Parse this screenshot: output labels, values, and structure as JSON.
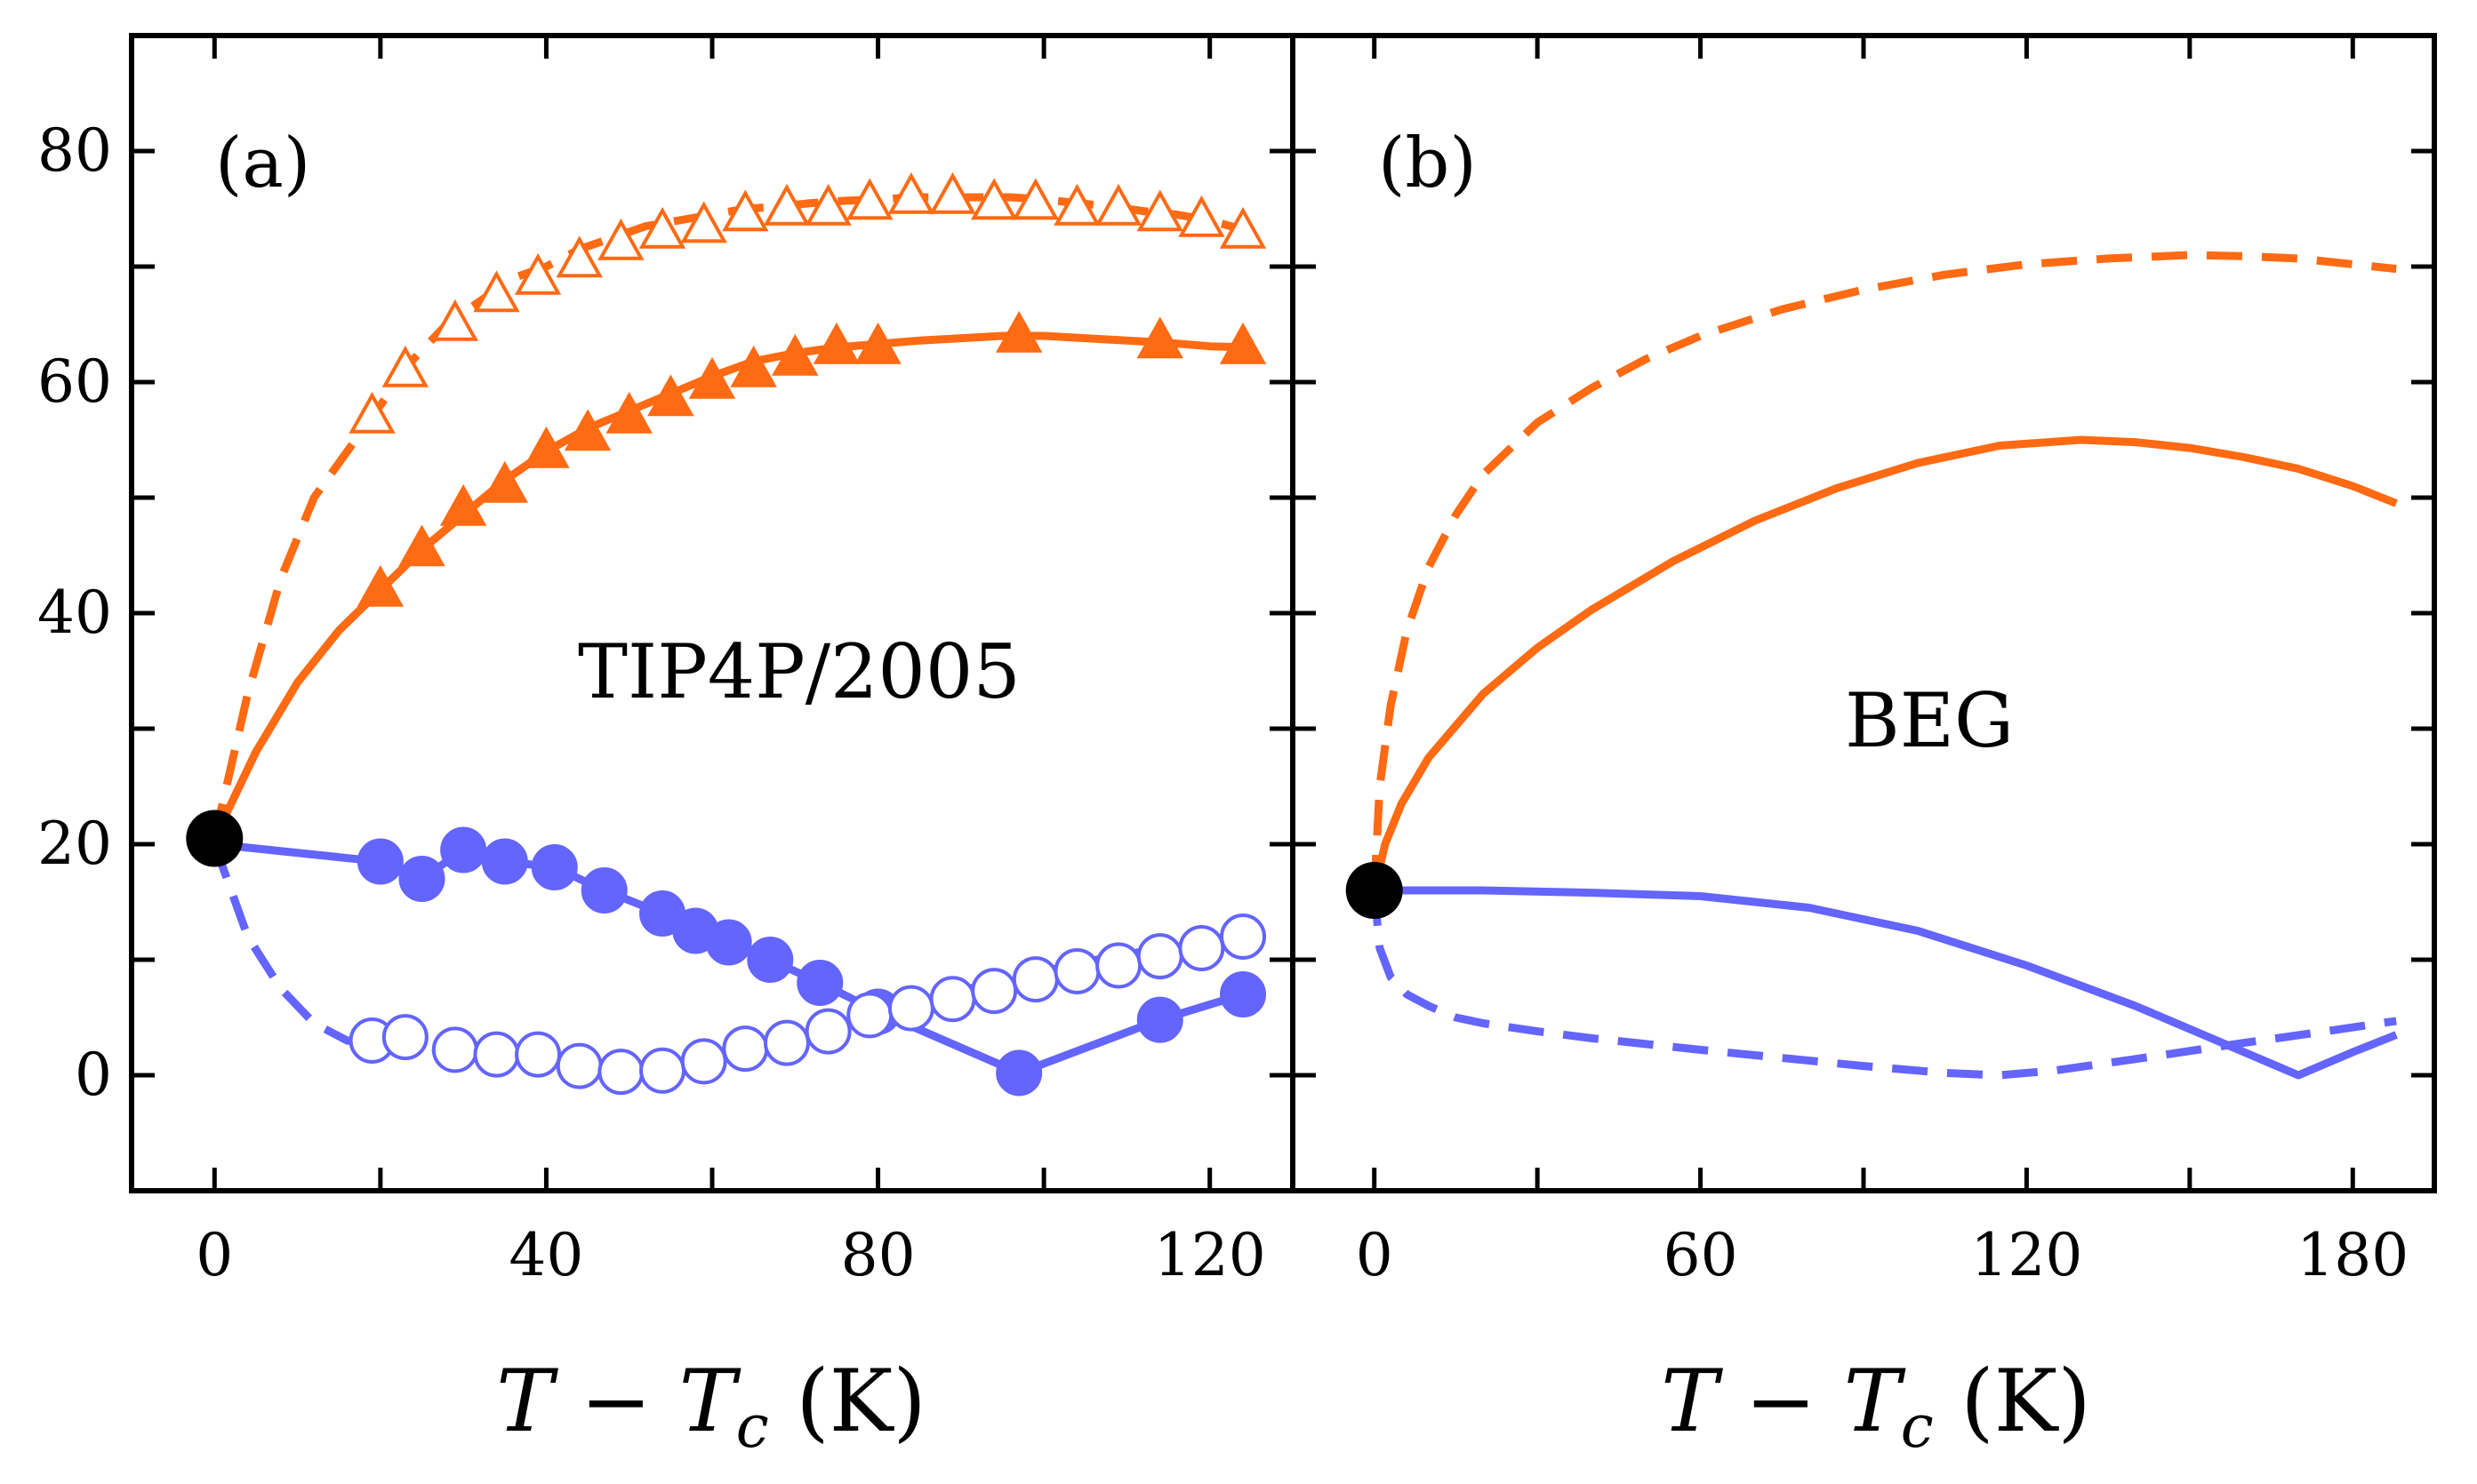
{
  "chart_data": [
    {
      "panel": "(a)",
      "type": "line",
      "annotation": "TIP4P/2005",
      "xlabel": "T − T_c (K)",
      "ylabel": "",
      "xlim": [
        -10,
        130
      ],
      "ylim": [
        -10,
        90
      ],
      "xticks": [
        0,
        40,
        80,
        120
      ],
      "yticks": [
        0,
        20,
        40,
        60,
        80
      ],
      "grid": false,
      "critical_point": {
        "x": 0,
        "y": 20.5,
        "color": "#000000"
      },
      "series": [
        {
          "color": "#ff6a13",
          "line": "dashed",
          "marker": "open-triangle",
          "x": [
            0,
            4,
            8,
            12,
            16,
            20,
            24,
            28,
            32,
            36,
            40,
            44,
            48,
            52,
            56,
            60,
            64,
            68,
            72,
            76,
            80,
            84,
            88,
            92,
            96,
            100,
            104,
            108,
            112,
            116,
            120,
            125
          ],
          "y": [
            20.5,
            33,
            43,
            50,
            54,
            58,
            62,
            65,
            67,
            69,
            70,
            71.5,
            72.5,
            73.5,
            74,
            74.5,
            75,
            75.2,
            75.5,
            75.7,
            75.8,
            76,
            76,
            76,
            76,
            75.8,
            75.5,
            75.2,
            74.8,
            74.5,
            74,
            73
          ],
          "marker_x": [
            19,
            23,
            29,
            34,
            39,
            44,
            49,
            54,
            59,
            64,
            69,
            74,
            79,
            84,
            89,
            94,
            99,
            104,
            109,
            114,
            119,
            124
          ],
          "marker_y": [
            57,
            61,
            65,
            67.5,
            69,
            70.5,
            72,
            73,
            73.5,
            74.5,
            75,
            75,
            75.5,
            76,
            76,
            75.5,
            75.5,
            75,
            75,
            74.5,
            74,
            73
          ]
        },
        {
          "color": "#ff6a13",
          "line": "solid",
          "marker": "filled-triangle",
          "x": [
            0,
            5,
            10,
            15,
            20,
            25,
            30,
            35,
            40,
            45,
            50,
            55,
            60,
            65,
            70,
            75,
            80,
            85,
            90,
            95,
            100,
            105,
            110,
            115,
            120,
            125
          ],
          "y": [
            20.5,
            28,
            34,
            38.5,
            42,
            45.5,
            48.5,
            51.5,
            54,
            56,
            57.5,
            59,
            60.5,
            61.8,
            62.5,
            63,
            63.3,
            63.6,
            63.8,
            64,
            64,
            63.8,
            63.6,
            63.4,
            63.1,
            63
          ],
          "marker_x": [
            20,
            25,
            30,
            35,
            40,
            45,
            50,
            55,
            60,
            65,
            70,
            75,
            80,
            97,
            114,
            124
          ],
          "marker_y": [
            42,
            45.5,
            49,
            51,
            54,
            55.5,
            57,
            58.5,
            60,
            61,
            62,
            63,
            63,
            64,
            63.5,
            63
          ]
        },
        {
          "color": "#6464ff",
          "line": "solid",
          "marker": "filled-circle",
          "x": [
            0,
            20,
            25,
            30,
            35,
            41,
            47,
            54,
            58,
            62,
            67,
            73,
            80,
            97,
            114,
            124
          ],
          "y": [
            20,
            18.5,
            17,
            19.5,
            18.5,
            18,
            16,
            14,
            12.5,
            11.5,
            10,
            8,
            5.5,
            0.2,
            4.8,
            7
          ],
          "marker_x": [
            20,
            25,
            30,
            35,
            41,
            47,
            54,
            58,
            62,
            67,
            73,
            80,
            97,
            114,
            124
          ],
          "marker_y": [
            18.5,
            17,
            19.5,
            18.5,
            18,
            16,
            14,
            12.5,
            11.5,
            10,
            8,
            5.5,
            0.2,
            4.8,
            7
          ]
        },
        {
          "color": "#6464ff",
          "line": "dashed",
          "marker": "open-circle",
          "x": [
            0,
            4,
            8,
            12,
            16,
            20,
            25,
            30,
            35,
            40,
            45,
            50,
            55,
            60,
            65,
            70,
            75,
            80,
            85,
            90,
            95,
            100,
            105,
            110,
            115,
            120,
            124
          ],
          "y": [
            20,
            12,
            7.5,
            4.5,
            3,
            2.7,
            2.5,
            2,
            1.5,
            1.2,
            0.8,
            0.5,
            0.6,
            1.3,
            2.2,
            3.2,
            4.2,
            5.3,
            6.3,
            7.3,
            8.3,
            9,
            9.8,
            10.5,
            11,
            11.5,
            12
          ],
          "marker_x": [
            19,
            23,
            29,
            34,
            39,
            44,
            49,
            54,
            59,
            64,
            69,
            74,
            79,
            84,
            89,
            94,
            99,
            104,
            109,
            114,
            119,
            124
          ],
          "marker_y": [
            3,
            3.3,
            2.2,
            1.8,
            1.8,
            0.8,
            0.3,
            0.4,
            1.2,
            2.3,
            2.8,
            3.8,
            5.2,
            5.8,
            6.6,
            7.3,
            8.3,
            9,
            9.5,
            10.3,
            11,
            12
          ]
        }
      ]
    },
    {
      "panel": "(b)",
      "type": "line",
      "annotation": "BEG",
      "xlabel": "T − T_c (K)",
      "ylabel": "",
      "xlim": [
        -15,
        195
      ],
      "ylim": [
        -10,
        90
      ],
      "xticks": [
        0,
        60,
        120,
        180
      ],
      "yticks": [
        0,
        20,
        40,
        60,
        80
      ],
      "grid": false,
      "critical_point": {
        "x": 0,
        "y": 16,
        "color": "#000000"
      },
      "series": [
        {
          "color": "#ff6a13",
          "line": "dashed",
          "marker": "none",
          "x": [
            0,
            1,
            3,
            6,
            10,
            15,
            20,
            30,
            40,
            50,
            60,
            75,
            90,
            105,
            120,
            135,
            150,
            160,
            170,
            180,
            188
          ],
          "y": [
            16,
            25,
            32,
            38.5,
            44,
            48.5,
            52,
            56.5,
            59.5,
            62,
            64,
            66.3,
            68,
            69.3,
            70.2,
            70.7,
            71,
            70.9,
            70.7,
            70.2,
            69.8
          ]
        },
        {
          "color": "#ff6a13",
          "line": "solid",
          "marker": "none",
          "x": [
            0,
            2,
            5,
            10,
            20,
            30,
            40,
            55,
            70,
            85,
            100,
            115,
            130,
            140,
            150,
            160,
            170,
            180,
            188
          ],
          "y": [
            16,
            20,
            23.5,
            27.5,
            33,
            37,
            40.3,
            44.5,
            48,
            50.8,
            53,
            54.5,
            55,
            54.8,
            54.3,
            53.5,
            52.5,
            51,
            49.5
          ]
        },
        {
          "color": "#6464ff",
          "line": "solid",
          "marker": "none",
          "x": [
            0,
            20,
            40,
            60,
            80,
            100,
            120,
            140,
            160,
            170,
            180,
            188
          ],
          "y": [
            16,
            16,
            15.8,
            15.5,
            14.5,
            12.5,
            9.5,
            6,
            2,
            0,
            2,
            3.5
          ]
        },
        {
          "color": "#6464ff",
          "line": "dashed",
          "marker": "none",
          "x": [
            0,
            1,
            3,
            6,
            10,
            15,
            20,
            30,
            40,
            50,
            60,
            75,
            90,
            105,
            115,
            125,
            140,
            160,
            175,
            188
          ],
          "y": [
            16,
            11,
            8.5,
            7,
            6,
            5,
            4.5,
            3.8,
            3.2,
            2.7,
            2.2,
            1.5,
            0.8,
            0.2,
            0,
            0.4,
            1.4,
            2.8,
            3.8,
            4.7
          ]
        }
      ]
    }
  ]
}
